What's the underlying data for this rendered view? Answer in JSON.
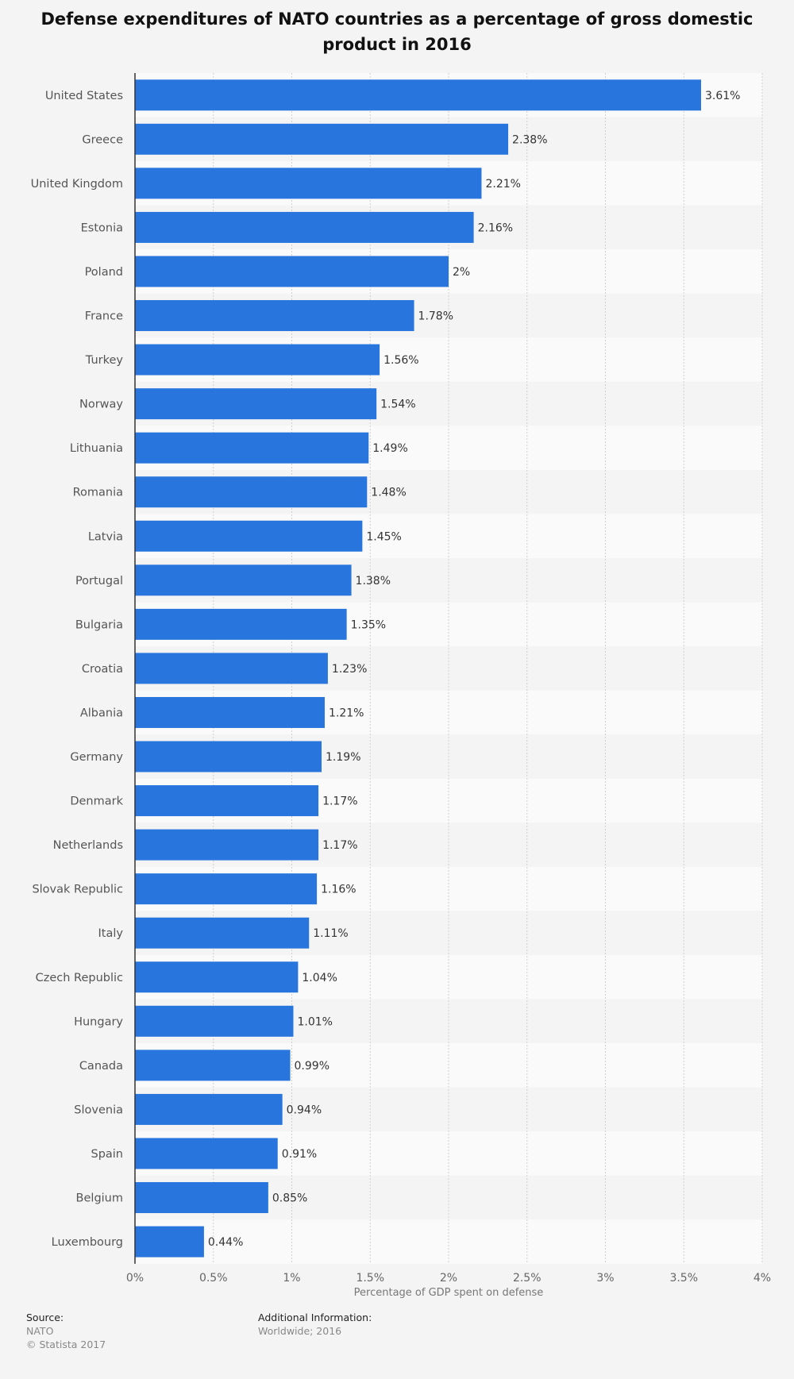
{
  "chart_data": {
    "type": "bar",
    "orientation": "horizontal",
    "title": "Defense expenditures of NATO countries as a percentage of gross domestic product in 2016",
    "xlabel": "Percentage of GDP spent on defense",
    "ylabel": "",
    "xlim": [
      0,
      4
    ],
    "ticks": [
      0,
      0.5,
      1,
      1.5,
      2,
      2.5,
      3,
      3.5,
      4
    ],
    "tick_labels": [
      "0%",
      "0.5%",
      "1%",
      "1.5%",
      "2%",
      "2.5%",
      "3%",
      "3.5%",
      "4%"
    ],
    "grid": true,
    "legend": "none",
    "categories": [
      "United States",
      "Greece",
      "United Kingdom",
      "Estonia",
      "Poland",
      "France",
      "Turkey",
      "Norway",
      "Lithuania",
      "Romania",
      "Latvia",
      "Portugal",
      "Bulgaria",
      "Croatia",
      "Albania",
      "Germany",
      "Denmark",
      "Netherlands",
      "Slovak Republic",
      "Italy",
      "Czech Republic",
      "Hungary",
      "Canada",
      "Slovenia",
      "Spain",
      "Belgium",
      "Luxembourg"
    ],
    "values": [
      3.61,
      2.38,
      2.21,
      2.16,
      2,
      1.78,
      1.56,
      1.54,
      1.49,
      1.48,
      1.45,
      1.38,
      1.35,
      1.23,
      1.21,
      1.19,
      1.17,
      1.17,
      1.16,
      1.11,
      1.04,
      1.01,
      0.99,
      0.94,
      0.91,
      0.85,
      0.44
    ],
    "value_labels": [
      "3.61%",
      "2.38%",
      "2.21%",
      "2.16%",
      "2%",
      "1.78%",
      "1.56%",
      "1.54%",
      "1.49%",
      "1.48%",
      "1.45%",
      "1.38%",
      "1.35%",
      "1.23%",
      "1.21%",
      "1.19%",
      "1.17%",
      "1.17%",
      "1.16%",
      "1.11%",
      "1.04%",
      "1.01%",
      "0.99%",
      "0.94%",
      "0.91%",
      "0.85%",
      "0.44%"
    ],
    "bar_color": "#2876dd"
  },
  "footer": {
    "source_heading": "Source:",
    "source_name": "NATO",
    "copyright": "© Statista 2017",
    "info_heading": "Additional Information:",
    "info_text": "Worldwide; 2016"
  }
}
